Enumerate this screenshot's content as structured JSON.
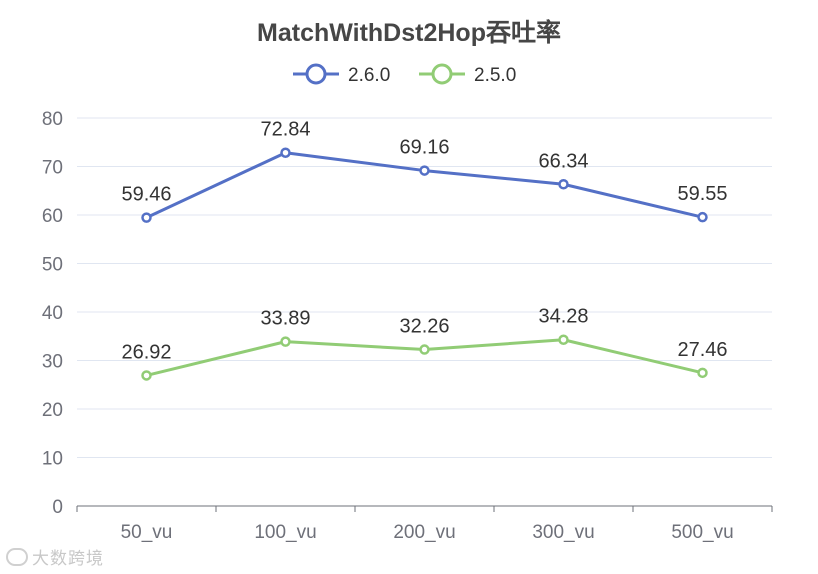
{
  "chart_data": {
    "type": "line",
    "title": "MatchWithDst2Hop吞吐率",
    "categories": [
      "50_vu",
      "100_vu",
      "200_vu",
      "300_vu",
      "500_vu"
    ],
    "series": [
      {
        "name": "2.6.0",
        "color": "#5470c6",
        "values": [
          59.46,
          72.84,
          69.16,
          66.34,
          59.55
        ]
      },
      {
        "name": "2.5.0",
        "color": "#91cc75",
        "values": [
          26.92,
          33.89,
          32.26,
          34.28,
          27.46
        ]
      }
    ],
    "ylim": [
      0,
      80
    ],
    "yticks": [
      0,
      10,
      20,
      30,
      40,
      50,
      60,
      70,
      80
    ],
    "xlabel": "",
    "ylabel": "",
    "grid": true,
    "legend_position": "top-center",
    "data_labels": true
  },
  "watermark": {
    "text": "大数跨境"
  }
}
